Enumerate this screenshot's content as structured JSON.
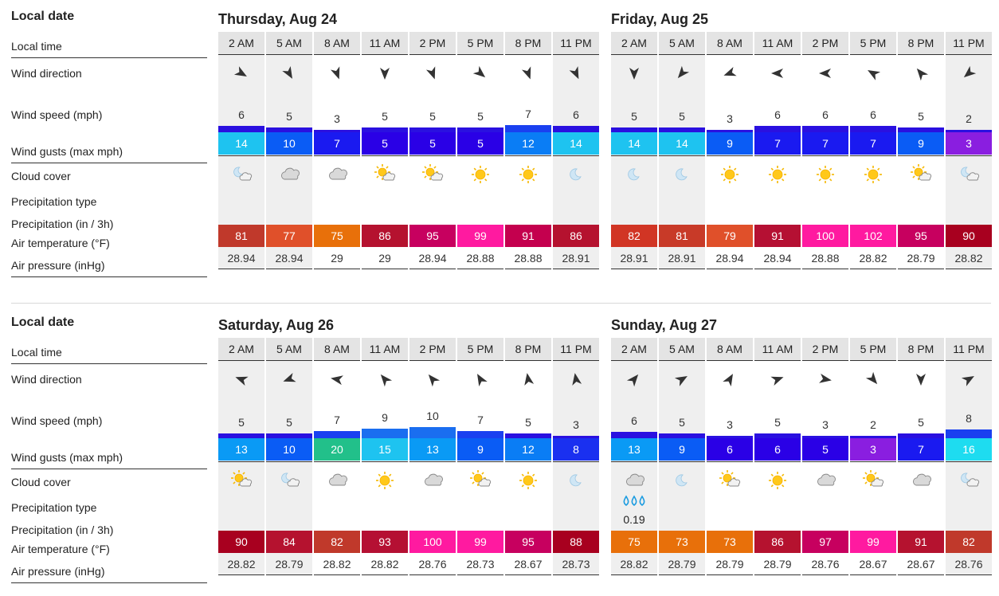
{
  "labels": {
    "local_date": "Local date",
    "local_time": "Local time",
    "wind_direction": "Wind direction",
    "wind_speed": "Wind speed (mph)",
    "wind_gusts": "Wind gusts (max mph)",
    "cloud_cover": "Cloud cover",
    "precip_type": "Precipitation type",
    "precip_amount": "Precipitation (in / 3h)",
    "air_temp": "Air temperature (°F)",
    "air_pressure": "Air pressure (inHg)"
  },
  "times": [
    "2 AM",
    "5 AM",
    "8 AM",
    "11 AM",
    "2 PM",
    "5 PM",
    "8 PM",
    "11 PM"
  ],
  "night": [
    true,
    true,
    false,
    false,
    false,
    false,
    false,
    true
  ],
  "days": [
    {
      "title": "Thursday, Aug 24",
      "wind_dir": [
        120,
        150,
        160,
        180,
        160,
        130,
        160,
        155
      ],
      "speed": [
        6,
        5,
        3,
        5,
        5,
        5,
        7,
        6
      ],
      "gust": [
        14,
        10,
        7,
        5,
        5,
        5,
        12,
        14
      ],
      "gust_color": [
        "#1ec3f0",
        "#0a5cf5",
        "#1a1af0",
        "#2a00e6",
        "#2a00e6",
        "#2a00e6",
        "#0a7df5",
        "#1ec3f0"
      ],
      "cloud": [
        "moon-cloud-icon",
        "cloud-icon",
        "cloud-icon",
        "sun-cloud-icon",
        "sun-cloud-icon",
        "sun-icon",
        "sun-icon",
        "moon-icon"
      ],
      "precip_type": [
        "",
        "",
        "",
        "",
        "",
        "",
        "",
        ""
      ],
      "precip_amount": [
        "",
        "",
        "",
        "",
        "",
        "",
        "",
        ""
      ],
      "temp": [
        81,
        77,
        75,
        86,
        95,
        99,
        91,
        86
      ],
      "temp_color": [
        "#c0392b",
        "#e0502a",
        "#e8700a",
        "#b5122f",
        "#c7005f",
        "#ff1aa0",
        "#c4004e",
        "#b5122f"
      ],
      "pressure": [
        "28.94",
        "28.94",
        "29",
        "29",
        "28.94",
        "28.88",
        "28.88",
        "28.91"
      ]
    },
    {
      "title": "Friday, Aug 25",
      "wind_dir": [
        180,
        220,
        250,
        270,
        270,
        300,
        320,
        230
      ],
      "speed": [
        5,
        5,
        3,
        6,
        6,
        6,
        5,
        2
      ],
      "gust": [
        14,
        14,
        9,
        7,
        7,
        7,
        9,
        3
      ],
      "gust_color": [
        "#1ec3f0",
        "#1ec3f0",
        "#0a5cf5",
        "#1a1af0",
        "#1a1af0",
        "#1a1af0",
        "#0a5cf5",
        "#8a1ee0"
      ],
      "cloud": [
        "moon-icon",
        "moon-icon",
        "sun-icon",
        "sun-icon",
        "sun-icon",
        "sun-icon",
        "sun-cloud-icon",
        "moon-cloud-icon"
      ],
      "precip_type": [
        "",
        "",
        "",
        "",
        "",
        "",
        "",
        ""
      ],
      "precip_amount": [
        "",
        "",
        "",
        "",
        "",
        "",
        "",
        ""
      ],
      "temp": [
        82,
        81,
        79,
        91,
        100,
        102,
        95,
        90
      ],
      "temp_color": [
        "#d13524",
        "#c83a28",
        "#e0502a",
        "#b51033",
        "#ff1aa0",
        "#ff1aa0",
        "#c7005f",
        "#a8001f"
      ],
      "pressure": [
        "28.91",
        "28.91",
        "28.94",
        "28.94",
        "28.88",
        "28.82",
        "28.79",
        "28.82"
      ]
    },
    {
      "title": "Saturday, Aug 26",
      "wind_dir": [
        290,
        250,
        280,
        320,
        320,
        330,
        350,
        350
      ],
      "speed": [
        5,
        5,
        7,
        9,
        10,
        7,
        5,
        3
      ],
      "gust": [
        13,
        10,
        20,
        15,
        13,
        9,
        12,
        8
      ],
      "gust_color": [
        "#0a9af5",
        "#0a5cf5",
        "#22c08a",
        "#1ec3f0",
        "#0a9af5",
        "#0a5cf5",
        "#0a7df5",
        "#1a30f0"
      ],
      "cloud": [
        "sun-cloud-icon",
        "moon-cloud-icon",
        "cloud-icon",
        "sun-icon",
        "cloud-icon",
        "sun-cloud-icon",
        "sun-icon",
        "moon-icon"
      ],
      "precip_type": [
        "",
        "",
        "",
        "",
        "",
        "",
        "",
        ""
      ],
      "precip_amount": [
        "",
        "",
        "",
        "",
        "",
        "",
        "",
        ""
      ],
      "temp": [
        90,
        84,
        82,
        93,
        100,
        99,
        95,
        88
      ],
      "temp_color": [
        "#a8001f",
        "#b5122f",
        "#c0392b",
        "#b51033",
        "#ff1aa0",
        "#ff1aa0",
        "#c7005f",
        "#a8001f"
      ],
      "pressure": [
        "28.82",
        "28.79",
        "28.82",
        "28.82",
        "28.76",
        "28.73",
        "28.67",
        "28.73"
      ]
    },
    {
      "title": "Sunday, Aug 27",
      "wind_dir": [
        40,
        60,
        30,
        70,
        100,
        140,
        180,
        60
      ],
      "speed": [
        6,
        5,
        3,
        5,
        3,
        2,
        5,
        8
      ],
      "gust": [
        13,
        9,
        6,
        6,
        5,
        3,
        7,
        16
      ],
      "gust_color": [
        "#0a9af5",
        "#0a5cf5",
        "#2a00e6",
        "#2a00e6",
        "#2a00e6",
        "#8a1ee0",
        "#1a1af0",
        "#1edcf0"
      ],
      "cloud": [
        "cloud-icon",
        "moon-icon",
        "sun-cloud-icon",
        "sun-icon",
        "cloud-icon",
        "sun-cloud-icon",
        "cloud-icon",
        "moon-cloud-icon"
      ],
      "precip_type": [
        "drops-icon",
        "",
        "",
        "",
        "",
        "",
        "",
        ""
      ],
      "precip_amount": [
        "0.19",
        "",
        "",
        "",
        "",
        "",
        "",
        ""
      ],
      "temp": [
        75,
        73,
        73,
        86,
        97,
        99,
        91,
        82
      ],
      "temp_color": [
        "#e8700a",
        "#e8700a",
        "#e8700a",
        "#b5122f",
        "#c7005f",
        "#ff1aa0",
        "#b5122f",
        "#c0392b"
      ],
      "pressure": [
        "28.82",
        "28.79",
        "28.79",
        "28.79",
        "28.76",
        "28.67",
        "28.67",
        "28.76"
      ]
    }
  ]
}
